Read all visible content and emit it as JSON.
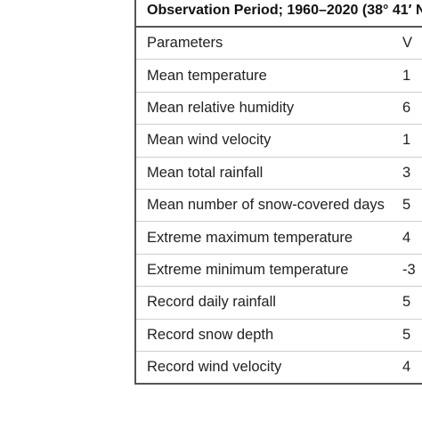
{
  "table": {
    "caption": "Observation Period; 1960–2020 (38° 41′ N",
    "header": {
      "parameter": "Parameters",
      "value": "V"
    },
    "rows": [
      {
        "parameter": "Mean temperature",
        "value": "1"
      },
      {
        "parameter": "Mean relative humidity",
        "value": "6"
      },
      {
        "parameter": "Mean wind velocity",
        "value": "1"
      },
      {
        "parameter": "Mean total rainfall",
        "value": "3"
      },
      {
        "parameter": "Mean number of snow-covered days",
        "value": "5"
      },
      {
        "parameter": "Extreme maximum temperature",
        "value": "4"
      },
      {
        "parameter": "Extreme minimum temperature",
        "value": "-3"
      },
      {
        "parameter": "Record daily rainfall",
        "value": "5"
      },
      {
        "parameter": "Record snow depth",
        "value": "5"
      },
      {
        "parameter": "Record wind velocity",
        "value": "4"
      }
    ]
  }
}
